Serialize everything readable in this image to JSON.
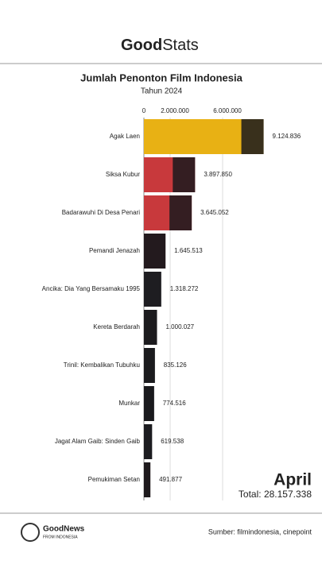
{
  "header": {
    "brand_bold": "Good",
    "brand_light": "Stats"
  },
  "chart_data": {
    "type": "bar",
    "orientation": "horizontal",
    "title": "Jumlah Penonton Film Indonesia",
    "subtitle": "Tahun 2024",
    "categories": [
      "Agak Laen",
      "Siksa Kubur",
      "Badarawuhi Di Desa Penari",
      "Pemandi Jenazah",
      "Ancika: Dia Yang Bersamaku 1995",
      "Kereta Berdarah",
      "Trinil: Kembalikan Tubuhku",
      "Munkar",
      "Jagat Alam Gaib: Sinden Gaib",
      "Pemukiman Setan"
    ],
    "values": [
      9124836,
      3897850,
      3645052,
      1645513,
      1318272,
      1000027,
      835126,
      774516,
      619538,
      491877
    ],
    "value_labels": [
      "9.124.836",
      "3.897.850",
      "3.645.052",
      "1.645.513",
      "1.318.272",
      "1.000.027",
      "835.126",
      "774.516",
      "619.538",
      "491.877"
    ],
    "colors": [
      "#e8b114",
      "#c8393c",
      "#c8393c",
      "#5a1e24",
      "#3b3336",
      "#2b2326",
      "#262427",
      "#1f1d20",
      "#2d2c30",
      "#3a1c1f"
    ],
    "xlim": [
      0,
      10000000
    ],
    "xticks": [
      0,
      {
        "value": 2000000,
        "label": "2.000.000"
      },
      {
        "value": 6000000,
        "label": "6.000.000"
      }
    ],
    "grid": true,
    "period": "April",
    "total": "Total: 28.157.338"
  },
  "footer": {
    "brand": "GoodNews",
    "tagline": "FROM INDONESIA",
    "source": "Sumber: filmindonesia, cinepoint"
  }
}
